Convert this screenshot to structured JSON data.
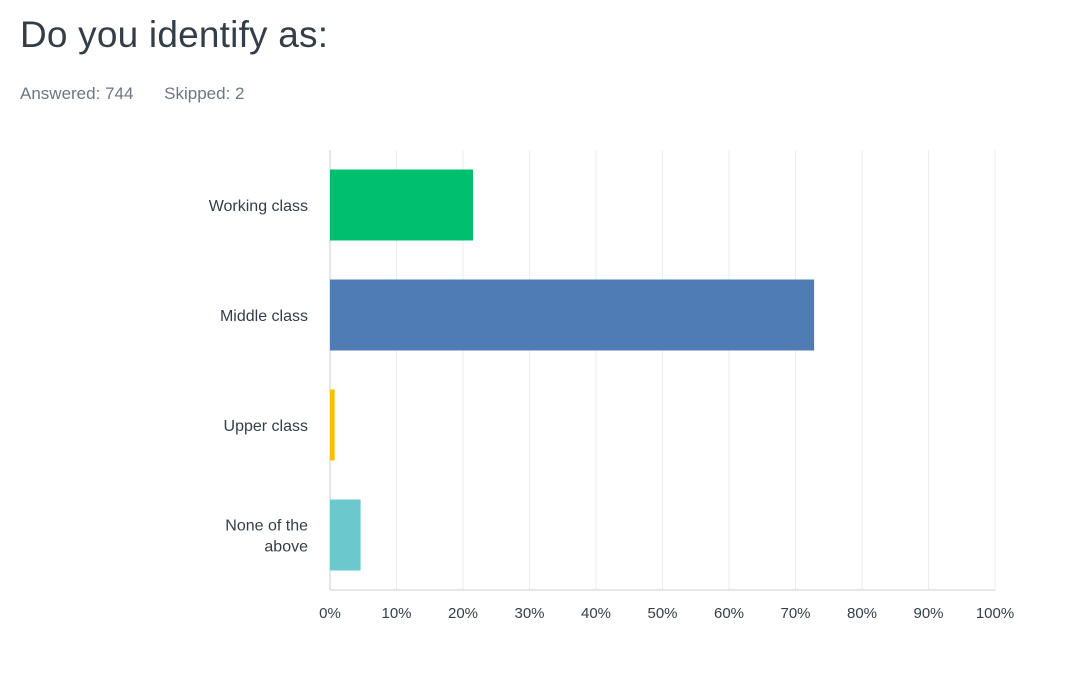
{
  "question": {
    "title": "Do you identify as:",
    "answered": "Answered: 744",
    "skipped": "Skipped: 2"
  },
  "chart_data": {
    "type": "bar",
    "orientation": "horizontal",
    "categories": [
      "Working class",
      "Middle class",
      "Upper class",
      "None of the above"
    ],
    "values": [
      21.5,
      72.8,
      0.7,
      4.6
    ],
    "colors": [
      "#00bf6f",
      "#507cb6",
      "#f9be00",
      "#6bc8cd"
    ],
    "xlim": [
      0,
      100
    ],
    "xticks": [
      "0%",
      "10%",
      "20%",
      "30%",
      "40%",
      "50%",
      "60%",
      "70%",
      "80%",
      "90%",
      "100%"
    ],
    "grid": true
  }
}
